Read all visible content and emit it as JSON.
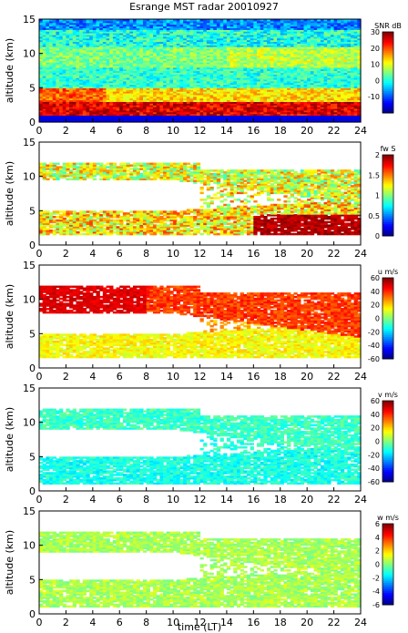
{
  "title": "Esrange MST radar 20010927",
  "xlabel": "time (LT)",
  "chart_data": [
    {
      "type": "heatmap",
      "ylabel": "altitude (km)",
      "x_range": [
        0,
        24
      ],
      "y_range": [
        0,
        15
      ],
      "x_ticks": [
        0,
        2,
        4,
        6,
        8,
        10,
        12,
        14,
        16,
        18,
        20,
        22,
        24
      ],
      "y_ticks": [
        0,
        5,
        10,
        15
      ],
      "colorbar": {
        "label": "SNR dB",
        "range": [
          -20,
          30
        ],
        "ticks": [
          30,
          20,
          10,
          0,
          -10
        ]
      },
      "field": "snr",
      "description_rows": [
        {
          "alt": [
            14.0,
            15.0
          ],
          "value": -10
        },
        {
          "alt": [
            11.0,
            14.0
          ],
          "value": -5
        },
        {
          "alt": [
            8.0,
            11.0
          ],
          "value": 2
        },
        {
          "alt": [
            5.0,
            8.0
          ],
          "value": 0
        },
        {
          "alt": [
            3.0,
            5.0
          ],
          "value": 12
        },
        {
          "alt": [
            1.0,
            3.0
          ],
          "value": 25
        }
      ]
    },
    {
      "type": "heatmap",
      "ylabel": "altitude (km)",
      "x_range": [
        0,
        24
      ],
      "y_range": [
        0,
        15
      ],
      "x_ticks": [
        0,
        2,
        4,
        6,
        8,
        10,
        12,
        14,
        16,
        18,
        20,
        22,
        24
      ],
      "y_ticks": [
        0,
        5,
        10,
        15
      ],
      "colorbar": {
        "label": "fw S",
        "range": [
          0,
          2
        ],
        "ticks": [
          2,
          1.5,
          1,
          0.5,
          0
        ]
      },
      "field": "width",
      "layers": [
        {
          "alt": [
            9.5,
            12.0
          ],
          "value": 1.2
        },
        {
          "alt": [
            1.5,
            5.0
          ],
          "value": 1.3
        }
      ]
    },
    {
      "type": "heatmap",
      "ylabel": "altitude (km)",
      "x_range": [
        0,
        24
      ],
      "y_range": [
        0,
        15
      ],
      "x_ticks": [
        0,
        2,
        4,
        6,
        8,
        10,
        12,
        14,
        16,
        18,
        20,
        22,
        24
      ],
      "y_ticks": [
        0,
        5,
        10,
        15
      ],
      "colorbar": {
        "label": "u m/s",
        "range": [
          -60,
          60
        ],
        "ticks": [
          60,
          40,
          20,
          0,
          -20,
          -40,
          -60
        ]
      },
      "field": "u",
      "layers": [
        {
          "alt": [
            8.0,
            12.0
          ],
          "value": 38
        },
        {
          "alt": [
            1.5,
            5.0
          ],
          "value": 15
        }
      ]
    },
    {
      "type": "heatmap",
      "ylabel": "altitude (km)",
      "x_range": [
        0,
        24
      ],
      "y_range": [
        0,
        15
      ],
      "x_ticks": [
        0,
        2,
        4,
        6,
        8,
        10,
        12,
        14,
        16,
        18,
        20,
        22,
        24
      ],
      "y_ticks": [
        0,
        5,
        10,
        15
      ],
      "colorbar": {
        "label": "v m/s",
        "range": [
          -60,
          60
        ],
        "ticks": [
          60,
          40,
          20,
          0,
          -20,
          -40,
          -60
        ]
      },
      "field": "v",
      "layers": [
        {
          "alt": [
            9.0,
            12.0
          ],
          "value": -8
        },
        {
          "alt": [
            1.0,
            5.0
          ],
          "value": -12
        }
      ]
    },
    {
      "type": "heatmap",
      "ylabel": "altitude (km)",
      "x_range": [
        0,
        24
      ],
      "y_range": [
        0,
        15
      ],
      "x_ticks": [
        0,
        2,
        4,
        6,
        8,
        10,
        12,
        14,
        16,
        18,
        20,
        22,
        24
      ],
      "y_ticks": [
        0,
        5,
        10,
        15
      ],
      "colorbar": {
        "label": "w m/s",
        "range": [
          -6,
          6
        ],
        "ticks": [
          6,
          4,
          2,
          0,
          -2,
          -4,
          -6
        ]
      },
      "field": "w",
      "layers": [
        {
          "alt": [
            9.0,
            12.0
          ],
          "value": 0.5
        },
        {
          "alt": [
            1.0,
            5.0
          ],
          "value": 0.5
        }
      ]
    }
  ]
}
